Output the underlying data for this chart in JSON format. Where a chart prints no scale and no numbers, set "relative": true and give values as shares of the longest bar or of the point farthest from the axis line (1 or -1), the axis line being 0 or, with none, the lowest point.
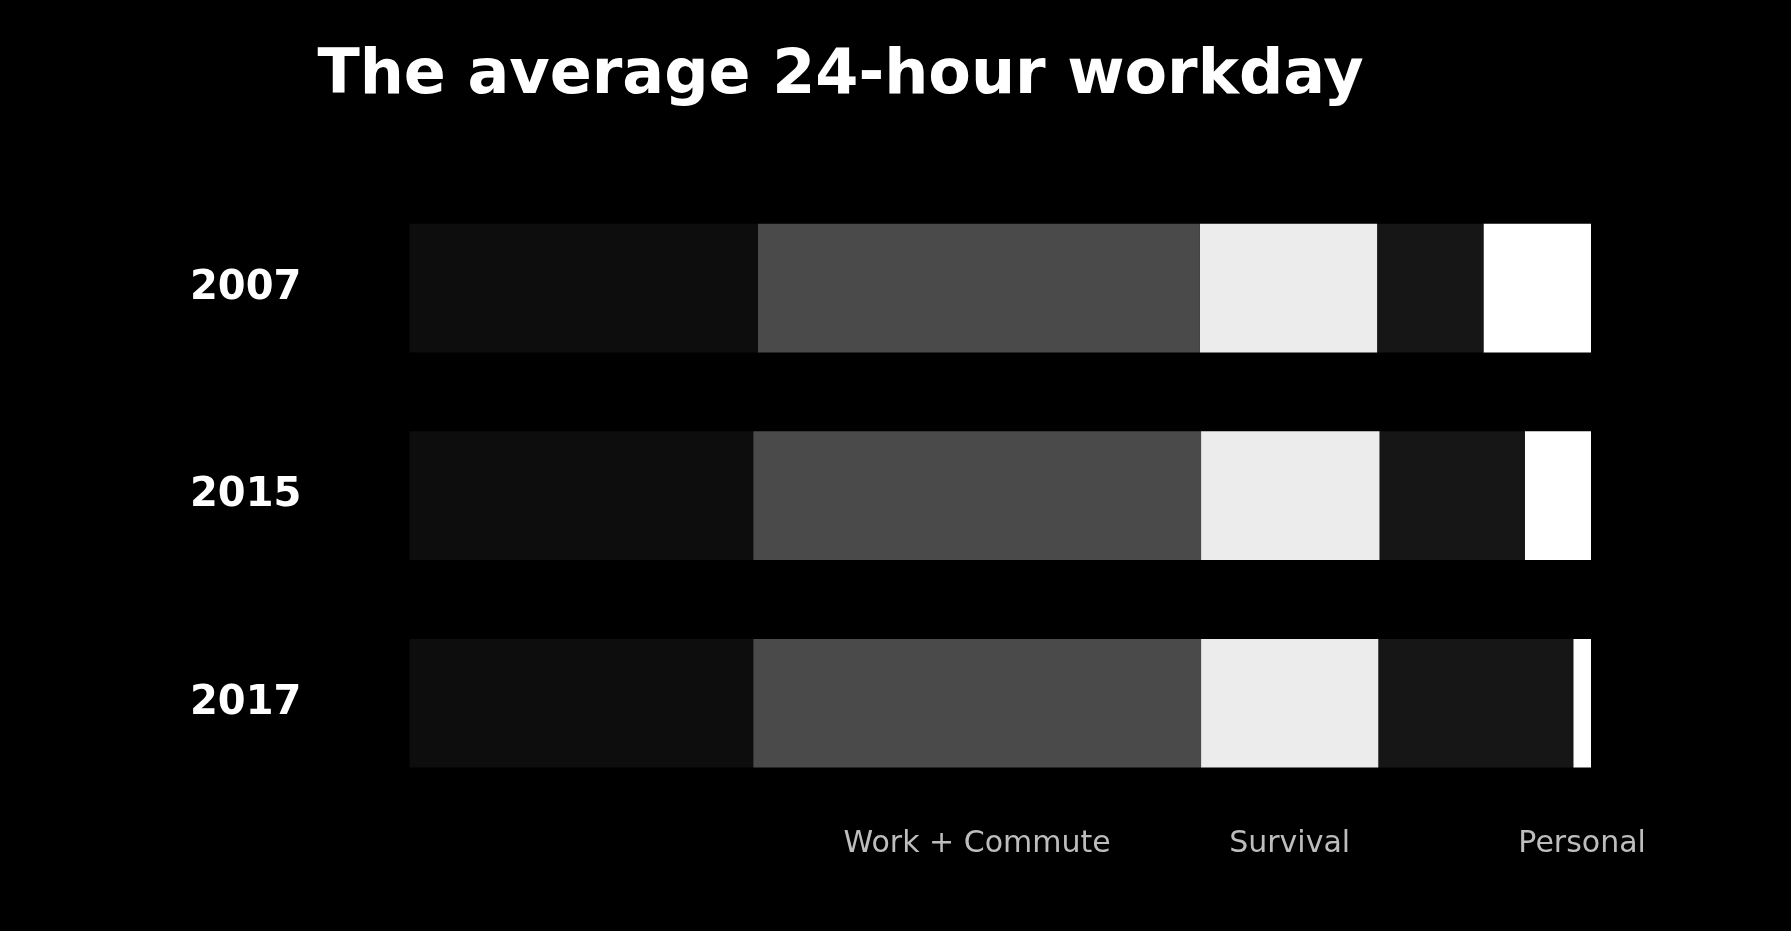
{
  "chart_data": {
    "type": "bar",
    "title": "The average 24-hour workday",
    "orientation": "horizontal",
    "stacked": true,
    "relative": true,
    "categories": [
      "2007",
      "2015",
      "2017"
    ],
    "series": [
      {
        "color": "#0d0d0d",
        "values": [
          0.295,
          0.291,
          0.291
        ]
      },
      {
        "name": "Work + Commute",
        "color": "#4a4a4a",
        "values": [
          0.374,
          0.379,
          0.379
        ]
      },
      {
        "name": "Survival",
        "color": "#ececec",
        "values": [
          0.15,
          0.151,
          0.15
        ]
      },
      {
        "color": "#161616",
        "values": [
          0.09,
          0.123,
          0.165
        ]
      },
      {
        "name": "Personal",
        "color": "#ffffff",
        "values": [
          0.091,
          0.056,
          0.015
        ]
      }
    ]
  }
}
